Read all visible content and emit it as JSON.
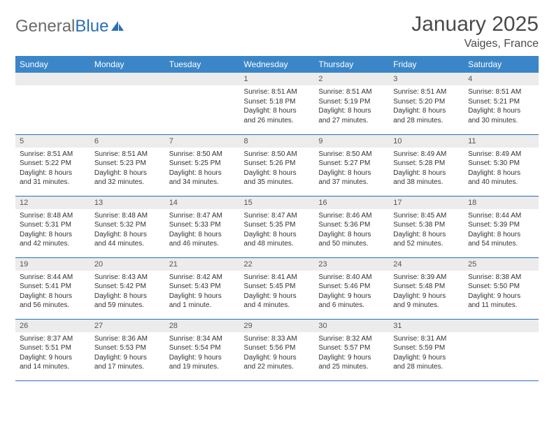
{
  "brand": {
    "part1": "General",
    "part2": "Blue"
  },
  "title": "January 2025",
  "location": "Vaiges, France",
  "colors": {
    "header_bg": "#3b86c8",
    "header_text": "#ffffff",
    "daynum_bg": "#ececec",
    "border": "#2a6fb5",
    "brand_gray": "#6b6b6b",
    "brand_blue": "#2a6fb5"
  },
  "weekdays": [
    "Sunday",
    "Monday",
    "Tuesday",
    "Wednesday",
    "Thursday",
    "Friday",
    "Saturday"
  ],
  "weeks": [
    [
      {
        "n": "",
        "lines": []
      },
      {
        "n": "",
        "lines": []
      },
      {
        "n": "",
        "lines": []
      },
      {
        "n": "1",
        "lines": [
          "Sunrise: 8:51 AM",
          "Sunset: 5:18 PM",
          "Daylight: 8 hours",
          "and 26 minutes."
        ]
      },
      {
        "n": "2",
        "lines": [
          "Sunrise: 8:51 AM",
          "Sunset: 5:19 PM",
          "Daylight: 8 hours",
          "and 27 minutes."
        ]
      },
      {
        "n": "3",
        "lines": [
          "Sunrise: 8:51 AM",
          "Sunset: 5:20 PM",
          "Daylight: 8 hours",
          "and 28 minutes."
        ]
      },
      {
        "n": "4",
        "lines": [
          "Sunrise: 8:51 AM",
          "Sunset: 5:21 PM",
          "Daylight: 8 hours",
          "and 30 minutes."
        ]
      }
    ],
    [
      {
        "n": "5",
        "lines": [
          "Sunrise: 8:51 AM",
          "Sunset: 5:22 PM",
          "Daylight: 8 hours",
          "and 31 minutes."
        ]
      },
      {
        "n": "6",
        "lines": [
          "Sunrise: 8:51 AM",
          "Sunset: 5:23 PM",
          "Daylight: 8 hours",
          "and 32 minutes."
        ]
      },
      {
        "n": "7",
        "lines": [
          "Sunrise: 8:50 AM",
          "Sunset: 5:25 PM",
          "Daylight: 8 hours",
          "and 34 minutes."
        ]
      },
      {
        "n": "8",
        "lines": [
          "Sunrise: 8:50 AM",
          "Sunset: 5:26 PM",
          "Daylight: 8 hours",
          "and 35 minutes."
        ]
      },
      {
        "n": "9",
        "lines": [
          "Sunrise: 8:50 AM",
          "Sunset: 5:27 PM",
          "Daylight: 8 hours",
          "and 37 minutes."
        ]
      },
      {
        "n": "10",
        "lines": [
          "Sunrise: 8:49 AM",
          "Sunset: 5:28 PM",
          "Daylight: 8 hours",
          "and 38 minutes."
        ]
      },
      {
        "n": "11",
        "lines": [
          "Sunrise: 8:49 AM",
          "Sunset: 5:30 PM",
          "Daylight: 8 hours",
          "and 40 minutes."
        ]
      }
    ],
    [
      {
        "n": "12",
        "lines": [
          "Sunrise: 8:48 AM",
          "Sunset: 5:31 PM",
          "Daylight: 8 hours",
          "and 42 minutes."
        ]
      },
      {
        "n": "13",
        "lines": [
          "Sunrise: 8:48 AM",
          "Sunset: 5:32 PM",
          "Daylight: 8 hours",
          "and 44 minutes."
        ]
      },
      {
        "n": "14",
        "lines": [
          "Sunrise: 8:47 AM",
          "Sunset: 5:33 PM",
          "Daylight: 8 hours",
          "and 46 minutes."
        ]
      },
      {
        "n": "15",
        "lines": [
          "Sunrise: 8:47 AM",
          "Sunset: 5:35 PM",
          "Daylight: 8 hours",
          "and 48 minutes."
        ]
      },
      {
        "n": "16",
        "lines": [
          "Sunrise: 8:46 AM",
          "Sunset: 5:36 PM",
          "Daylight: 8 hours",
          "and 50 minutes."
        ]
      },
      {
        "n": "17",
        "lines": [
          "Sunrise: 8:45 AM",
          "Sunset: 5:38 PM",
          "Daylight: 8 hours",
          "and 52 minutes."
        ]
      },
      {
        "n": "18",
        "lines": [
          "Sunrise: 8:44 AM",
          "Sunset: 5:39 PM",
          "Daylight: 8 hours",
          "and 54 minutes."
        ]
      }
    ],
    [
      {
        "n": "19",
        "lines": [
          "Sunrise: 8:44 AM",
          "Sunset: 5:41 PM",
          "Daylight: 8 hours",
          "and 56 minutes."
        ]
      },
      {
        "n": "20",
        "lines": [
          "Sunrise: 8:43 AM",
          "Sunset: 5:42 PM",
          "Daylight: 8 hours",
          "and 59 minutes."
        ]
      },
      {
        "n": "21",
        "lines": [
          "Sunrise: 8:42 AM",
          "Sunset: 5:43 PM",
          "Daylight: 9 hours",
          "and 1 minute."
        ]
      },
      {
        "n": "22",
        "lines": [
          "Sunrise: 8:41 AM",
          "Sunset: 5:45 PM",
          "Daylight: 9 hours",
          "and 4 minutes."
        ]
      },
      {
        "n": "23",
        "lines": [
          "Sunrise: 8:40 AM",
          "Sunset: 5:46 PM",
          "Daylight: 9 hours",
          "and 6 minutes."
        ]
      },
      {
        "n": "24",
        "lines": [
          "Sunrise: 8:39 AM",
          "Sunset: 5:48 PM",
          "Daylight: 9 hours",
          "and 9 minutes."
        ]
      },
      {
        "n": "25",
        "lines": [
          "Sunrise: 8:38 AM",
          "Sunset: 5:50 PM",
          "Daylight: 9 hours",
          "and 11 minutes."
        ]
      }
    ],
    [
      {
        "n": "26",
        "lines": [
          "Sunrise: 8:37 AM",
          "Sunset: 5:51 PM",
          "Daylight: 9 hours",
          "and 14 minutes."
        ]
      },
      {
        "n": "27",
        "lines": [
          "Sunrise: 8:36 AM",
          "Sunset: 5:53 PM",
          "Daylight: 9 hours",
          "and 17 minutes."
        ]
      },
      {
        "n": "28",
        "lines": [
          "Sunrise: 8:34 AM",
          "Sunset: 5:54 PM",
          "Daylight: 9 hours",
          "and 19 minutes."
        ]
      },
      {
        "n": "29",
        "lines": [
          "Sunrise: 8:33 AM",
          "Sunset: 5:56 PM",
          "Daylight: 9 hours",
          "and 22 minutes."
        ]
      },
      {
        "n": "30",
        "lines": [
          "Sunrise: 8:32 AM",
          "Sunset: 5:57 PM",
          "Daylight: 9 hours",
          "and 25 minutes."
        ]
      },
      {
        "n": "31",
        "lines": [
          "Sunrise: 8:31 AM",
          "Sunset: 5:59 PM",
          "Daylight: 9 hours",
          "and 28 minutes."
        ]
      },
      {
        "n": "",
        "lines": []
      }
    ]
  ]
}
